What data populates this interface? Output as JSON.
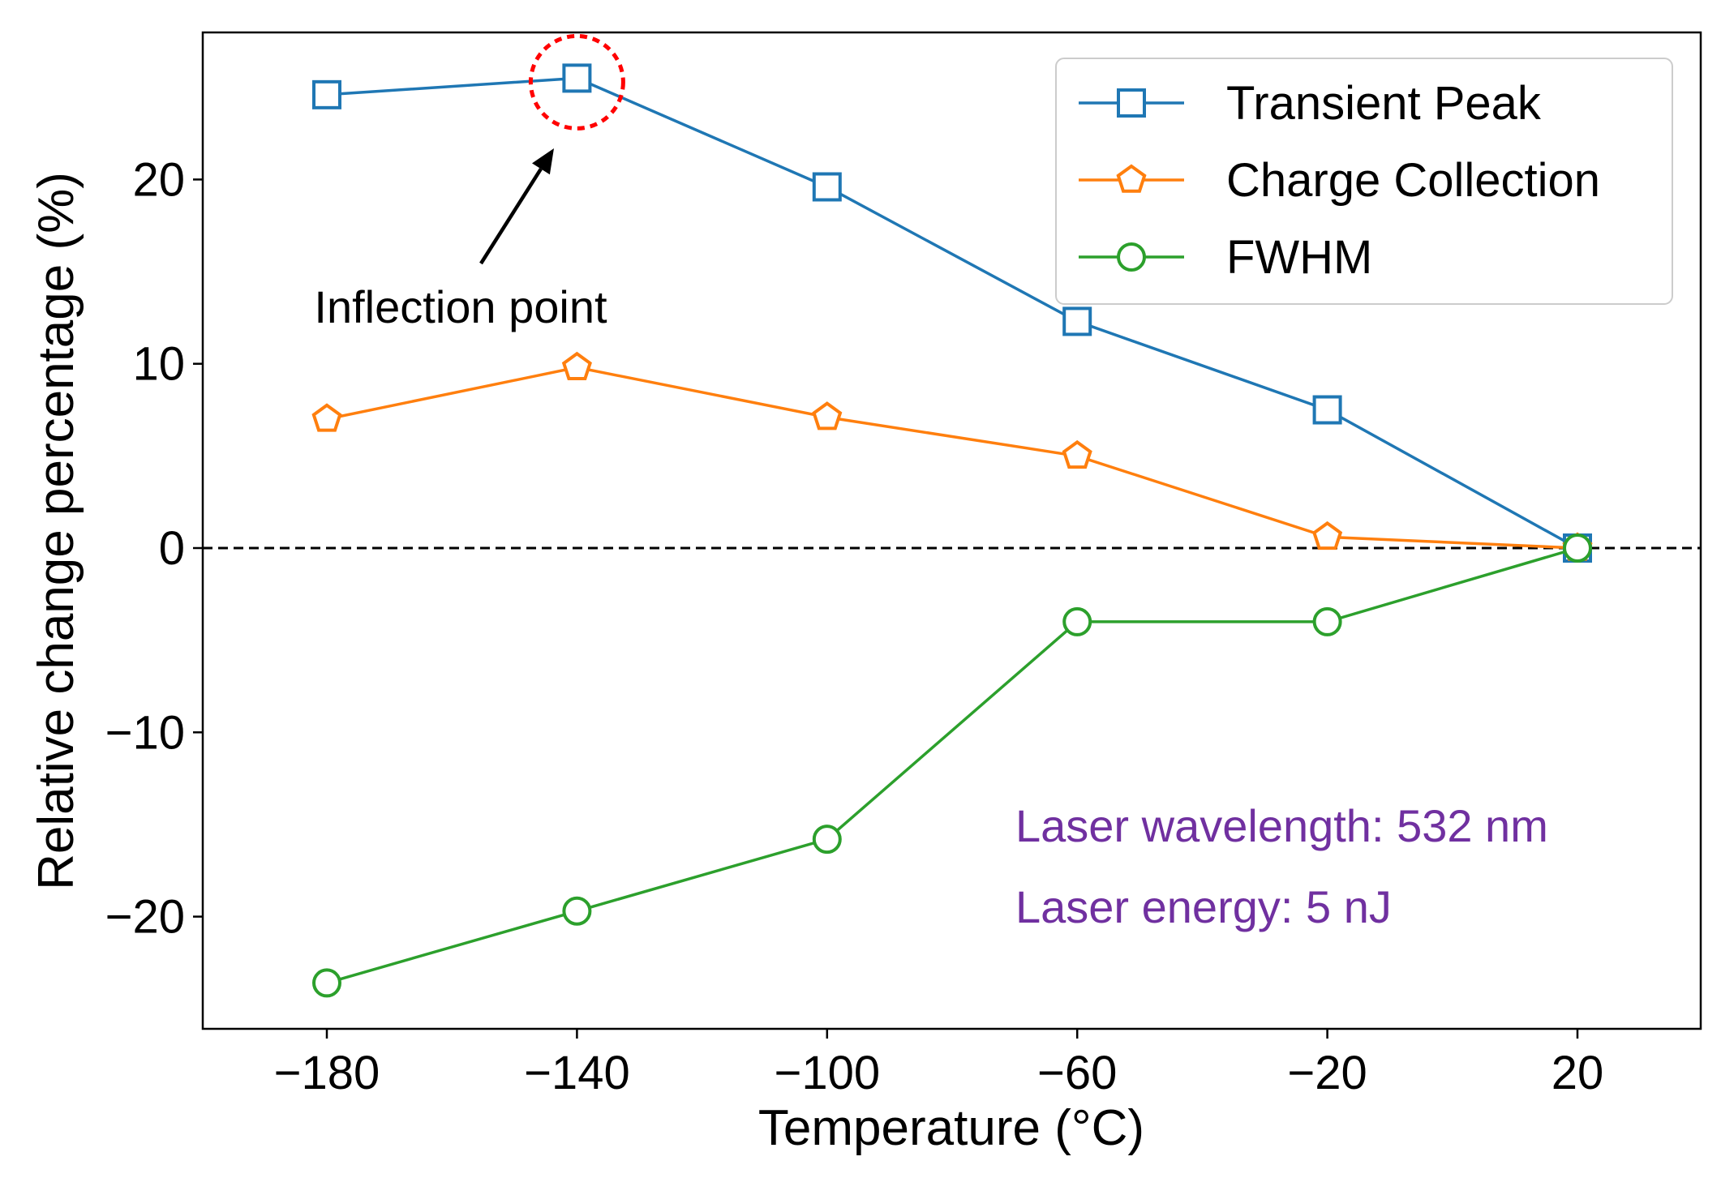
{
  "chart_data": {
    "type": "line",
    "xlabel": "Temperature (°C)",
    "ylabel": "Relative change percentage (%)",
    "xlim": [
      -200,
      40
    ],
    "ylim": [
      -26,
      28
    ],
    "x": [
      -180,
      -140,
      -100,
      -60,
      -20,
      20
    ],
    "xticks": [
      -180,
      -140,
      -100,
      -60,
      -20,
      20
    ],
    "yticks": [
      -20,
      -10,
      0,
      10,
      20
    ],
    "tick_labels": {
      "x": [
        "−180",
        "−140",
        "−100",
        "−60",
        "−20",
        "20"
      ],
      "y": [
        "−20",
        "−10",
        "0",
        "10",
        "20"
      ]
    },
    "reference_line": {
      "y": 0,
      "style": "dashed",
      "color": "#000000"
    },
    "grid": false,
    "legend_position": "top-right",
    "series": [
      {
        "name": "Transient Peak",
        "marker": "square",
        "color": "#1f77b4",
        "values": [
          24.6,
          25.5,
          19.6,
          12.3,
          7.5,
          0.0
        ]
      },
      {
        "name": "Charge Collection",
        "marker": "pentagon",
        "color": "#ff7f0e",
        "values": [
          7.0,
          9.8,
          7.1,
          5.0,
          0.6,
          0.0
        ]
      },
      {
        "name": "FWHM",
        "marker": "circle",
        "color": "#2ca02c",
        "values": [
          -23.6,
          -19.7,
          -15.8,
          -4.0,
          -4.0,
          0.0
        ]
      }
    ],
    "annotations": {
      "inflection_text": "Inflection point",
      "inflection_x": -140,
      "inflection_y": 25.5,
      "highlight_color": "#ff0000",
      "laser_lines": [
        "Laser wavelength: 532 nm",
        "Laser energy: 5 nJ"
      ],
      "laser_color": "#7030a0"
    }
  }
}
